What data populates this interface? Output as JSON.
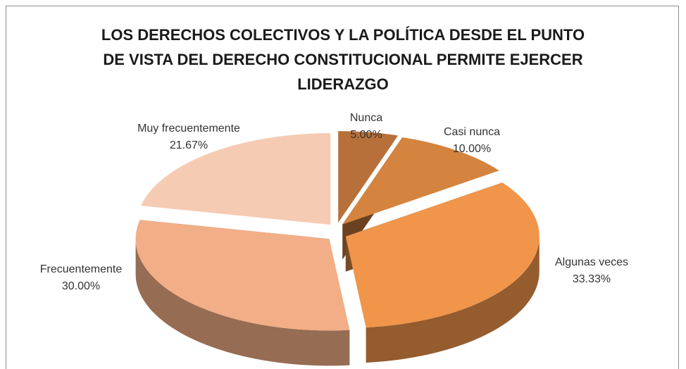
{
  "chart_data": {
    "type": "pie",
    "title": "LOS DERECHOS COLECTIVOS Y LA POLÍTICA DESDE EL PUNTO DE VISTA DEL DERECHO CONSTITUCIONAL PERMITE EJERCER LIDERAZGO",
    "categories": [
      "Nunca",
      "Casi nunca",
      "Algunas veces",
      "Frecuentemente",
      "Muy frecuentemente"
    ],
    "values": [
      5,
      10,
      33.33,
      30,
      21.67
    ],
    "value_labels": [
      "5.00%",
      "10.00%",
      "33.33%",
      "30.00%",
      "21.67%"
    ],
    "colors": [
      "#b8703a",
      "#d4843f",
      "#f0954a",
      "#f2ae86",
      "#f6cbb3"
    ]
  }
}
